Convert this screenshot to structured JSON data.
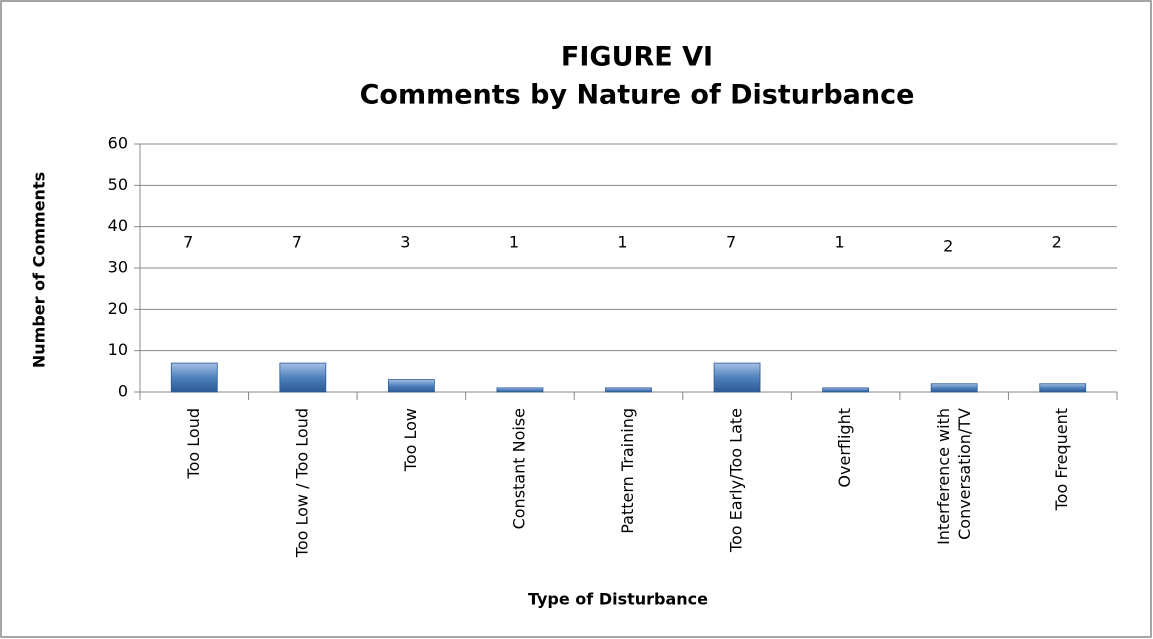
{
  "chart_data": {
    "type": "bar",
    "title": "FIGURE VI",
    "subtitle": "Comments by Nature of Disturbance",
    "x_label": "Type of Disturbance",
    "y_label": "Number of Comments",
    "categories": [
      "Too Loud",
      "Too Low / Too Loud",
      "Too Low",
      "Constant Noise",
      "Pattern Training",
      "Too Early/Too Late",
      "Overflight",
      "Interference with Conversation/TV",
      "Too Frequent"
    ],
    "values": [
      7,
      7,
      3,
      1,
      1,
      7,
      1,
      2,
      2
    ],
    "color": "#4f81bd",
    "ylim": [
      0,
      60
    ],
    "yticks": [
      0,
      10,
      20,
      30,
      40,
      50,
      60
    ],
    "grid": true
  }
}
